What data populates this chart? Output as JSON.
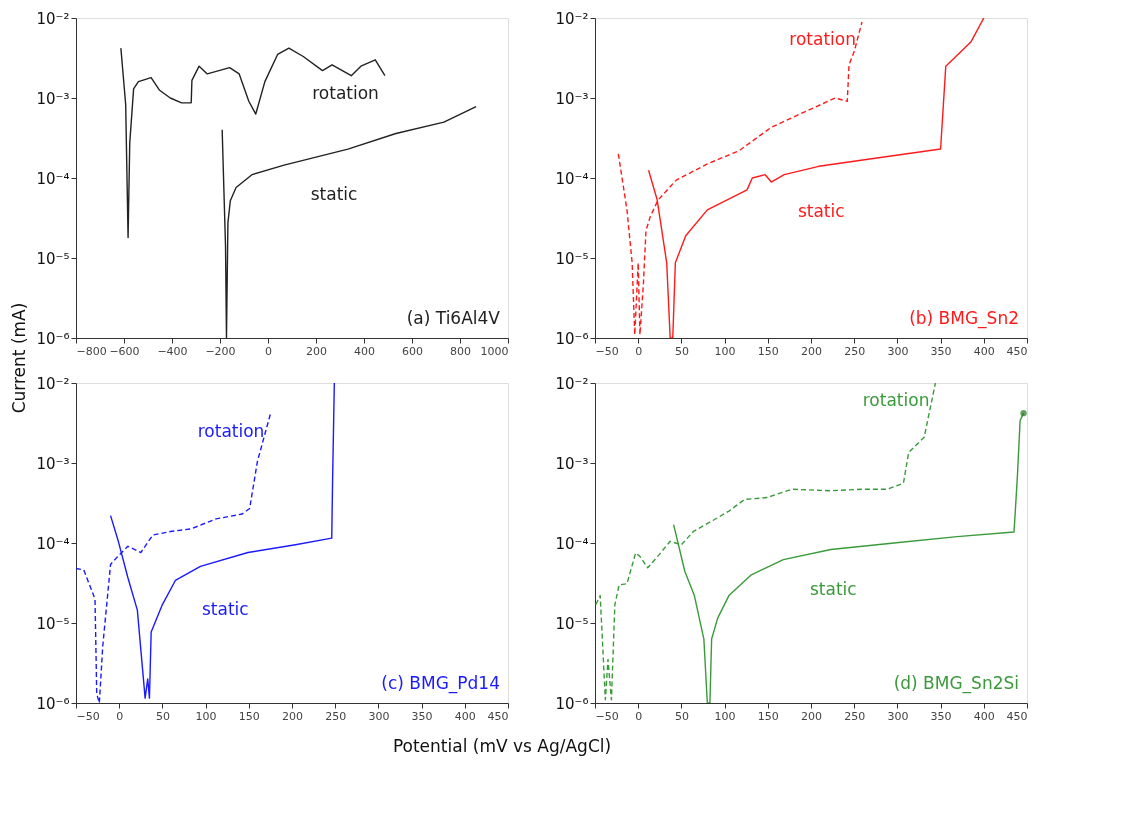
{
  "chart_data": [
    {
      "type": "line",
      "ylabel": "Current (mA)",
      "log": "y",
      "xlim": [
        -800,
        1000
      ],
      "xticks": [
        -800,
        -600,
        -400,
        -200,
        0,
        200,
        400,
        600,
        800,
        1000
      ],
      "ylim": [
        1e-06,
        0.01
      ],
      "yticks": [
        {
          "value": 1e-06,
          "label": "10⁻⁶"
        },
        {
          "value": 1e-05,
          "label": "10⁻⁵"
        },
        {
          "value": 0.0001,
          "label": "10⁻⁴"
        },
        {
          "value": 0.001,
          "label": "10⁻³"
        },
        {
          "value": 0.01,
          "label": "10⁻²"
        }
      ],
      "grid": false,
      "annotations": [
        "(a) Ti6Al4V"
      ],
      "series": [
        {
          "name": "rotation",
          "color": "#222222",
          "line_style": "solid",
          "x": [
            -613,
            -593,
            -583,
            -576,
            -560,
            -540,
            -487,
            -453,
            -407,
            -360,
            -320,
            -317,
            -287,
            -253,
            -160,
            -120,
            -80,
            -51,
            -13,
            40,
            87,
            147,
            227,
            267,
            347,
            387,
            447,
            487
          ],
          "values": [
            0.0042,
            0.00083,
            1.8e-05,
            0.000275,
            0.0013,
            0.0016,
            0.0018,
            0.00126,
            0.001,
            0.00087,
            0.00087,
            0.00166,
            0.0025,
            0.002,
            0.0024,
            0.002,
            0.00091,
            0.00063,
            0.0016,
            0.0035,
            0.0042,
            0.0033,
            0.0022,
            0.0026,
            0.0019,
            0.0025,
            0.003,
            0.0019
          ]
        },
        {
          "name": "static",
          "color": "#222222",
          "line_style": "solid",
          "x": [
            -191,
            -177,
            -173,
            -167,
            -157,
            -133,
            -67,
            67,
            333,
            533,
            733,
            867
          ],
          "values": [
            0.0004,
            1.4e-05,
            1e-06,
            2.75e-05,
            5.2e-05,
            7.6e-05,
            0.00011,
            0.000145,
            0.00023,
            0.00036,
            0.0005,
            0.00078
          ]
        }
      ]
    },
    {
      "type": "line",
      "log": "y",
      "xlim": [
        -50,
        450
      ],
      "xticks": [
        -50,
        0,
        50,
        100,
        150,
        200,
        250,
        300,
        350,
        400,
        450
      ],
      "ylim": [
        1e-06,
        0.01
      ],
      "yticks": [
        {
          "value": 1e-06,
          "label": "10⁻⁶"
        },
        {
          "value": 1e-05,
          "label": "10⁻⁵"
        },
        {
          "value": 0.0001,
          "label": "10⁻⁴"
        },
        {
          "value": 0.001,
          "label": "10⁻³"
        },
        {
          "value": 0.01,
          "label": "10⁻²"
        }
      ],
      "grid": false,
      "annotations": [
        "(b) BMG_Sn2"
      ],
      "series": [
        {
          "name": "rotation",
          "color": "#ff1a1a",
          "line_style": "dashed",
          "x": [
            -23,
            -13,
            -7,
            -4,
            0,
            2,
            6,
            9,
            14,
            23,
            44,
            80,
            117,
            154,
            190,
            228,
            242,
            244,
            250,
            259
          ],
          "values": [
            0.0002,
            4e-05,
            8.7e-06,
            1.1e-06,
            8.7e-06,
            1.1e-06,
            4.7e-06,
            2.2e-05,
            3.3e-05,
            5.3e-05,
            9.4e-05,
            0.00015,
            0.00022,
            0.00043,
            0.00065,
            0.001,
            0.00091,
            0.0026,
            0.0038,
            0.0089
          ]
        },
        {
          "name": "static",
          "color": "#ff1a1a",
          "line_style": "solid",
          "x": [
            12,
            22,
            33,
            37,
            40,
            43,
            55,
            80,
            126,
            132,
            147,
            154,
            169,
            209,
            264,
            350,
            356,
            385,
            400
          ],
          "values": [
            0.000125,
            5.3e-05,
            8.7e-06,
            1e-06,
            1e-06,
            8.7e-06,
            1.9e-05,
            4e-05,
            7.1e-05,
            0.0001,
            0.00011,
            8.9e-05,
            0.00011,
            0.00014,
            0.00017,
            0.00023,
            0.0025,
            0.005,
            0.01
          ]
        }
      ]
    },
    {
      "type": "line",
      "xlabel": "Potential (mV vs Ag/AgCl)",
      "log": "y",
      "xlim": [
        -50,
        450
      ],
      "xticks": [
        -50,
        0,
        50,
        100,
        150,
        200,
        250,
        300,
        350,
        400,
        450
      ],
      "ylim": [
        1e-06,
        0.01
      ],
      "yticks": [
        {
          "value": 1e-06,
          "label": "10⁻⁶"
        },
        {
          "value": 1e-05,
          "label": "10⁻⁵"
        },
        {
          "value": 0.0001,
          "label": "10⁻⁴"
        },
        {
          "value": 0.001,
          "label": "10⁻³"
        },
        {
          "value": 0.01,
          "label": "10⁻²"
        }
      ],
      "grid": false,
      "annotations": [
        "(c) BMG_Pd14"
      ],
      "series": [
        {
          "name": "rotation",
          "color": "#1a1aff",
          "line_style": "dashed",
          "x": [
            -50,
            -41,
            -28,
            -26,
            -23,
            -19,
            -10,
            -1,
            10,
            25,
            39,
            61,
            83,
            112,
            142,
            151,
            160,
            175
          ],
          "values": [
            4.8e-05,
            4.6e-05,
            2e-05,
            1.3e-06,
            1e-06,
            5.2e-06,
            5.4e-05,
            6.9e-05,
            9.1e-05,
            7.6e-05,
            0.000126,
            0.00014,
            0.00015,
            0.0002,
            0.00023,
            0.00027,
            0.00105,
            0.0041
          ]
        },
        {
          "name": "static",
          "color": "#1a1aff",
          "line_style": "solid",
          "x": [
            -10,
            -1,
            10,
            21,
            30,
            33,
            35,
            37,
            50,
            65,
            94,
            149,
            204,
            246,
            247,
            249
          ],
          "values": [
            0.00022,
            0.000105,
            3.7e-05,
            1.45e-05,
            1.15e-06,
            2e-06,
            1.15e-06,
            7.7e-06,
            1.7e-05,
            3.4e-05,
            5.1e-05,
            7.6e-05,
            9.5e-05,
            0.000115,
            0.00063,
            0.01
          ]
        }
      ]
    },
    {
      "type": "line",
      "log": "y",
      "xlim": [
        -50,
        450
      ],
      "xticks": [
        -50,
        0,
        50,
        100,
        150,
        200,
        250,
        300,
        350,
        400,
        450
      ],
      "ylim": [
        1e-06,
        0.01
      ],
      "yticks": [
        {
          "value": 1e-06,
          "label": "10⁻⁶"
        },
        {
          "value": 1e-05,
          "label": "10⁻⁵"
        },
        {
          "value": 0.0001,
          "label": "10⁻⁴"
        },
        {
          "value": 0.001,
          "label": "10⁻³"
        },
        {
          "value": 0.01,
          "label": "10⁻²"
        }
      ],
      "grid": false,
      "annotations": [
        "(d) BMG_Sn2Si"
      ],
      "series": [
        {
          "name": "rotation",
          "color": "#3a9a3a",
          "line_style": "dashed",
          "x": [
            -49,
            -44,
            -38,
            -35,
            -31,
            -27,
            -22,
            -13,
            -3,
            2,
            11,
            24,
            37,
            50,
            64,
            86,
            105,
            123,
            149,
            178,
            222,
            259,
            288,
            307,
            313,
            331,
            344
          ],
          "values": [
            1.7e-05,
            2.2e-05,
            1.1e-06,
            3.5e-06,
            1.1e-06,
            1.7e-05,
            3e-05,
            3.1e-05,
            7.5e-05,
            6.8e-05,
            4.9e-05,
            7.1e-05,
            0.000105,
            9.5e-05,
            0.00014,
            0.00019,
            0.00025,
            0.00035,
            0.00037,
            0.00047,
            0.00045,
            0.00047,
            0.00047,
            0.00056,
            0.00135,
            0.0021,
            0.01
          ]
        },
        {
          "name": "static",
          "color": "#3a9a3a",
          "line_style": "solid",
          "x": [
            41,
            54,
            65,
            76,
            80,
            83,
            85,
            92,
            105,
            131,
            168,
            223,
            296,
            369,
            435,
            439,
            442,
            446
          ],
          "values": [
            0.00017,
            4.4e-05,
            2.2e-05,
            6.3e-06,
            1e-06,
            1e-06,
            6.3e-06,
            1.15e-05,
            2.2e-05,
            4e-05,
            6.2e-05,
            8.3e-05,
            0.0001,
            0.00012,
            0.000137,
            0.00072,
            0.0034,
            0.0042
          ]
        },
        {
          "type": "scatter",
          "marker": "circle",
          "color": "#1f7a1f",
          "x": [
            446
          ],
          "values": [
            0.0042
          ]
        }
      ]
    }
  ]
}
